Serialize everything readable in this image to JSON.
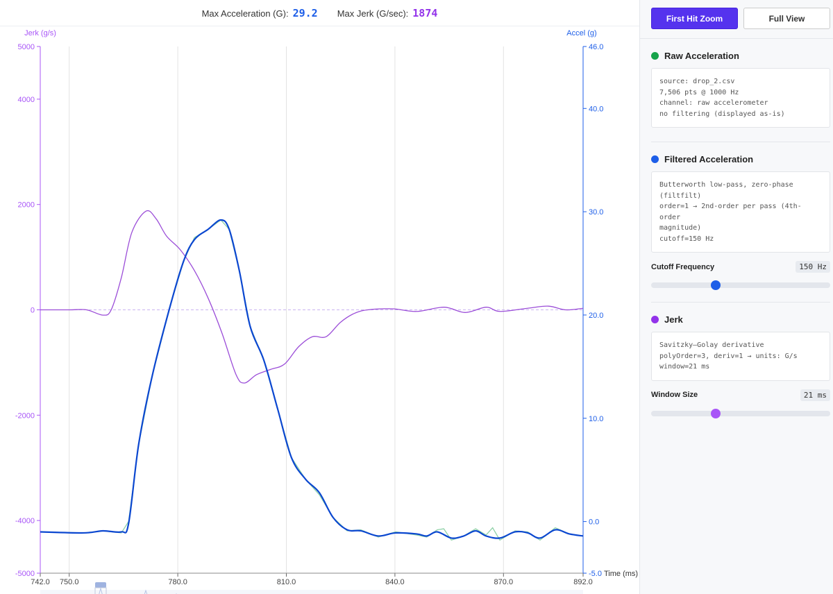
{
  "stats": {
    "max_accel_label": "Max Acceleration (G):",
    "max_accel_value": "29.2",
    "max_jerk_label": "Max Jerk (G/sec):",
    "max_jerk_value": "1874"
  },
  "toolbar": {
    "first_hit_zoom": "First Hit Zoom",
    "full_view": "Full View"
  },
  "colors": {
    "raw": "#16a34a",
    "filtered": "#1d5ee8",
    "jerk": "#9333ea",
    "accent": "#5533ee"
  },
  "panels": {
    "raw": {
      "title": "Raw Acceleration",
      "info": "source: drop_2.csv\n7,506 pts @ 1000 Hz\nchannel: raw accelerometer\nno filtering (displayed as-is)"
    },
    "filtered": {
      "title": "Filtered Acceleration",
      "info": "Butterworth low-pass, zero-phase\n(filtfilt)\norder=1 → 2nd-order per pass (4th-order\nmagnitude)\ncutoff=150 Hz",
      "control_label": "Cutoff Frequency",
      "control_value": "150 Hz",
      "slider_fraction": 0.36
    },
    "jerk": {
      "title": "Jerk",
      "info": "Savitzky–Golay derivative\npolyOrder=3, deriv=1 → units: G/s\nwindow=21 ms",
      "control_label": "Window Size",
      "control_value": "21 ms",
      "slider_fraction": 0.36
    }
  },
  "chart_data": {
    "type": "line",
    "xlabel": "Time (ms)",
    "ylabel_left": "Jerk (g/s)",
    "ylabel_right": "Accel (g)",
    "xlim": [
      742,
      892
    ],
    "ylim_left": [
      -5000,
      5000
    ],
    "ylim_right": [
      -5,
      46
    ],
    "x_ticks": [
      "742.0",
      "750.0",
      "780.0",
      "810.0",
      "840.0",
      "870.0",
      "892.0"
    ],
    "y_left_ticks": [
      "5000",
      "4000",
      "2000",
      "0",
      "-2000",
      "-4000",
      "-5000"
    ],
    "y_right_ticks": [
      "46.0",
      "40.0",
      "30.0",
      "20.0",
      "10.0",
      "0.0",
      "-5.0"
    ],
    "grid": "vertical",
    "series": [
      {
        "id": "filtered",
        "axis": "right",
        "points": [
          [
            742,
            -1.0
          ],
          [
            754,
            -1.1
          ],
          [
            759.3,
            -0.9
          ],
          [
            764.4,
            -1.0
          ],
          [
            766.4,
            -0.2
          ],
          [
            769.2,
            7.5
          ],
          [
            773,
            14.2
          ],
          [
            778,
            21
          ],
          [
            781.7,
            25.3
          ],
          [
            784.6,
            27.3
          ],
          [
            788.4,
            28.3
          ],
          [
            791.9,
            29.2
          ],
          [
            794.2,
            28.3
          ],
          [
            797,
            24.3
          ],
          [
            800,
            18.9
          ],
          [
            803.8,
            15.6
          ],
          [
            807.6,
            10.9
          ],
          [
            811.4,
            6.2
          ],
          [
            815.3,
            4.1
          ],
          [
            819.1,
            2.8
          ],
          [
            822.9,
            0.4
          ],
          [
            826.8,
            -0.8
          ],
          [
            830.6,
            -0.9
          ],
          [
            835.4,
            -1.4
          ],
          [
            840.2,
            -1.1
          ],
          [
            846,
            -1.2
          ],
          [
            848.8,
            -1.4
          ],
          [
            851.7,
            -1.0
          ],
          [
            855.6,
            -1.6
          ],
          [
            859,
            -1.4
          ],
          [
            862.3,
            -0.9
          ],
          [
            865.2,
            -1.4
          ],
          [
            869,
            -1.6
          ],
          [
            873.2,
            -1.0
          ],
          [
            876.7,
            -1.1
          ],
          [
            880.1,
            -1.6
          ],
          [
            884.3,
            -0.8
          ],
          [
            888.2,
            -1.2
          ],
          [
            892,
            -1.4
          ]
        ]
      },
      {
        "id": "raw",
        "axis": "right",
        "points": [
          [
            742,
            -1.0
          ],
          [
            754,
            -1.1
          ],
          [
            759.3,
            -0.9
          ],
          [
            764.4,
            -1.1
          ],
          [
            766.4,
            -0.0
          ],
          [
            769.2,
            7.5
          ],
          [
            773,
            14.2
          ],
          [
            778,
            21
          ],
          [
            781.7,
            25.3
          ],
          [
            784.6,
            27.5
          ],
          [
            788.4,
            28.3
          ],
          [
            791.9,
            29.2
          ],
          [
            794.2,
            28.3
          ],
          [
            797,
            24.3
          ],
          [
            800,
            18.9
          ],
          [
            803.8,
            15.6
          ],
          [
            807.6,
            10.9
          ],
          [
            811.4,
            6.2
          ],
          [
            815.3,
            4.1
          ],
          [
            819.1,
            2.6
          ],
          [
            822.9,
            0.4
          ],
          [
            826.8,
            -0.9
          ],
          [
            830.6,
            -0.8
          ],
          [
            835.4,
            -1.5
          ],
          [
            840.2,
            -1.0
          ],
          [
            846,
            -1.3
          ],
          [
            848.8,
            -1.5
          ],
          [
            851.7,
            -0.8
          ],
          [
            853.5,
            -0.7
          ],
          [
            855.6,
            -1.8
          ],
          [
            859,
            -1.4
          ],
          [
            862.3,
            -0.7
          ],
          [
            865.2,
            -1.3
          ],
          [
            867,
            -0.6
          ],
          [
            869,
            -1.8
          ],
          [
            873.2,
            -0.9
          ],
          [
            876.7,
            -1.0
          ],
          [
            880.1,
            -1.8
          ],
          [
            884.3,
            -0.6
          ],
          [
            888.2,
            -1.2
          ],
          [
            892,
            -1.4
          ]
        ]
      },
      {
        "id": "jerk",
        "axis": "left",
        "points": [
          [
            742,
            0
          ],
          [
            750,
            0
          ],
          [
            754.8,
            0
          ],
          [
            759.3,
            -100
          ],
          [
            761.6,
            0
          ],
          [
            764.4,
            610
          ],
          [
            767.3,
            1470
          ],
          [
            771.2,
            1874
          ],
          [
            774,
            1730
          ],
          [
            776.9,
            1400
          ],
          [
            780.7,
            1140
          ],
          [
            784.6,
            745
          ],
          [
            788.4,
            220
          ],
          [
            792.2,
            -440
          ],
          [
            796.1,
            -1230
          ],
          [
            798.4,
            -1390
          ],
          [
            801.8,
            -1230
          ],
          [
            805.7,
            -1130
          ],
          [
            809.5,
            -1030
          ],
          [
            813.4,
            -700
          ],
          [
            817.2,
            -510
          ],
          [
            821,
            -510
          ],
          [
            824.9,
            -240
          ],
          [
            828.7,
            -70
          ],
          [
            832.5,
            0
          ],
          [
            839.3,
            20
          ],
          [
            846,
            -30
          ],
          [
            853.6,
            50
          ],
          [
            859.4,
            -50
          ],
          [
            865.2,
            50
          ],
          [
            869,
            -30
          ],
          [
            876.7,
            30
          ],
          [
            882.4,
            70
          ],
          [
            887.2,
            0
          ],
          [
            892,
            30
          ]
        ]
      }
    ]
  }
}
